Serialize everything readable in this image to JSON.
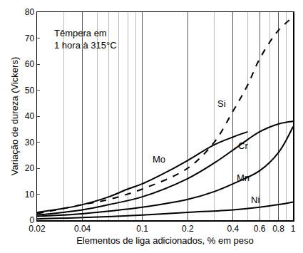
{
  "chart_data": {
    "type": "line",
    "x_label": "Elementos de liga adicionados, % em peso",
    "y_label": "Variação de dureza (Vickers)",
    "annotation": "Têmpera em\n1 hora à 315°C",
    "log": "x",
    "grid": "x",
    "xlim": [
      0.02,
      1
    ],
    "ylim": [
      0,
      80
    ],
    "xticks": [
      0.02,
      0.04,
      0.1,
      0.2,
      0.4,
      0.6,
      0.8,
      1
    ],
    "yticks": [
      0,
      10,
      20,
      30,
      40,
      50,
      60,
      70,
      80
    ],
    "series": [
      {
        "name": "Mo",
        "color": "#000000",
        "line_style": "solid",
        "x": [
          0.02,
          0.03,
          0.04,
          0.06,
          0.08,
          0.1,
          0.15,
          0.2,
          0.3,
          0.4,
          0.5
        ],
        "values": [
          3,
          4.5,
          6,
          9,
          12,
          14,
          19,
          23,
          29,
          32,
          34
        ]
      },
      {
        "name": "Si",
        "color": "#000000",
        "line_style": "dashed",
        "x": [
          0.02,
          0.04,
          0.06,
          0.1,
          0.2,
          0.3,
          0.4,
          0.5,
          0.6,
          0.8,
          1
        ],
        "values": [
          2.5,
          6,
          8,
          12,
          20,
          30,
          42,
          52,
          62,
          73,
          78
        ]
      },
      {
        "name": "Cr",
        "color": "#000000",
        "line_style": "solid",
        "x": [
          0.02,
          0.04,
          0.06,
          0.1,
          0.2,
          0.3,
          0.4,
          0.5,
          0.6,
          0.8,
          1
        ],
        "values": [
          2,
          4,
          6,
          9,
          16,
          22,
          27,
          31,
          34,
          37,
          38
        ]
      },
      {
        "name": "Mn",
        "color": "#000000",
        "line_style": "solid",
        "x": [
          0.02,
          0.04,
          0.06,
          0.1,
          0.2,
          0.3,
          0.4,
          0.6,
          0.8,
          1
        ],
        "values": [
          1.5,
          2.5,
          3.5,
          5,
          8,
          11,
          14,
          19,
          26,
          36
        ]
      },
      {
        "name": "Ni",
        "color": "#000000",
        "line_style": "solid",
        "x": [
          0.02,
          0.04,
          0.1,
          0.2,
          0.4,
          0.6,
          0.8,
          1
        ],
        "values": [
          0.5,
          1,
          2,
          3,
          4,
          5,
          6,
          7
        ]
      }
    ]
  }
}
